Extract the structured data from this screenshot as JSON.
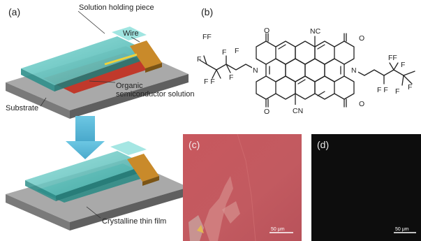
{
  "figure": {
    "panel_a": {
      "label": "(a)",
      "callouts": {
        "solution_holding_piece": "Solution holding piece",
        "wire": "Wire",
        "organic_line1": "Organic",
        "organic_line2": "semiconductor solution",
        "substrate": "Substrate",
        "crystalline_thin_film": "Crystalline thin film"
      }
    },
    "panel_b": {
      "label": "(b)",
      "atoms": {
        "nc_top": "NC",
        "cn_bottom": "CN",
        "n": "N",
        "o": "O",
        "f": "F",
        "ff": "FF",
        "f_f": "F F"
      }
    },
    "panel_c": {
      "label": "(c)",
      "scalebar": "50 μm"
    },
    "panel_d": {
      "label": "(d)",
      "scalebar": "50 μm"
    },
    "colors": {
      "glass": "#5fc9c4",
      "substrate_top": "#a9a9a9",
      "substrate_side": "#6d6d6d",
      "solution": "#c0392b",
      "wire": "#c98a2a",
      "arrow": "#5fb8d6",
      "micro_c": "#c45a5e",
      "micro_d": "#0d0d0d"
    }
  }
}
